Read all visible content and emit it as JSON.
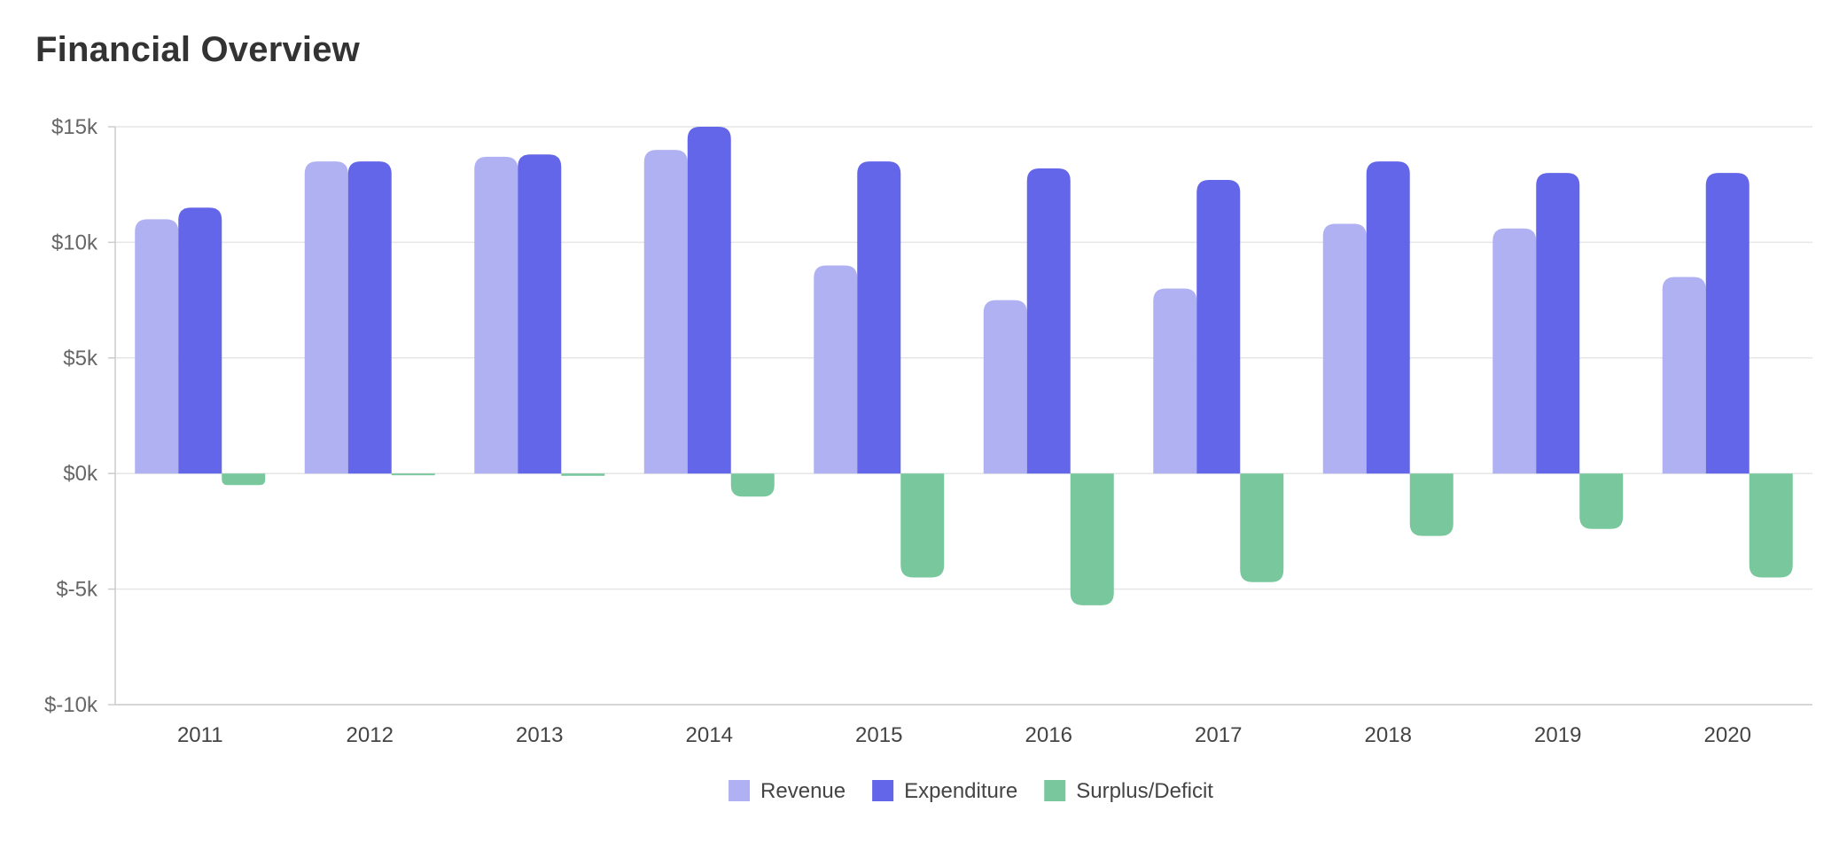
{
  "header": {
    "title": "Financial Overview"
  },
  "chart_data": {
    "type": "bar",
    "title": "Financial Overview",
    "xlabel": "",
    "ylabel": "",
    "categories": [
      "2011",
      "2012",
      "2013",
      "2014",
      "2015",
      "2016",
      "2017",
      "2018",
      "2019",
      "2020"
    ],
    "series": [
      {
        "name": "Revenue",
        "color": "#b0b1f2",
        "values": [
          11000,
          13500,
          13700,
          14000,
          9000,
          7500,
          8000,
          10800,
          10600,
          8500
        ]
      },
      {
        "name": "Expenditure",
        "color": "#6366e9",
        "values": [
          11500,
          13500,
          13800,
          15000,
          13500,
          13200,
          12700,
          13500,
          13000,
          13000
        ]
      },
      {
        "name": "Surplus/Deficit",
        "color": "#79c79d",
        "values": [
          -500,
          -50,
          -100,
          -1000,
          -4500,
          -5700,
          -4700,
          -2700,
          -2400,
          -4500
        ]
      }
    ],
    "ylim": [
      -10000,
      15000
    ],
    "yticks": [
      15000,
      10000,
      5000,
      0,
      -5000,
      -10000
    ],
    "ytick_labels": [
      "$15k",
      "$10k",
      "$5k",
      "$0k",
      "$-5k",
      "$-10k"
    ],
    "grid": true,
    "legend_position": "bottom-center"
  }
}
